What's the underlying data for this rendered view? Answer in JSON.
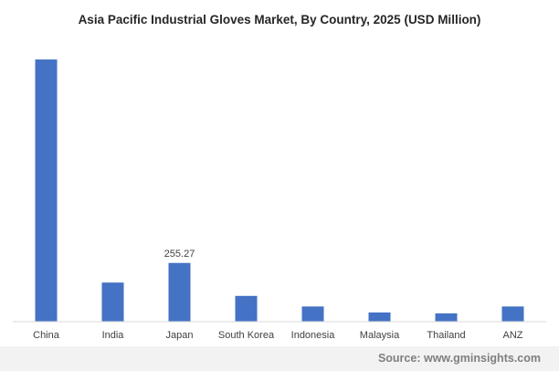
{
  "chart_data": {
    "type": "bar",
    "title": "Asia Pacific Industrial Gloves Market, By Country, 2025 (USD Million)",
    "categories": [
      "China",
      "India",
      "Japan",
      "South Korea",
      "Indonesia",
      "Malaysia",
      "Thailand",
      "ANZ"
    ],
    "values": [
      1140,
      170,
      255.27,
      112,
      66,
      40,
      36,
      66
    ],
    "data_labels": [
      null,
      null,
      "255.27",
      null,
      null,
      null,
      null,
      null
    ],
    "xlabel": "",
    "ylabel": "",
    "ylim": [
      0,
      1200
    ],
    "grid": false,
    "legend": "none",
    "bar_color": "#4472c4",
    "axis_color": "#d9d9d9"
  },
  "footer": {
    "source": "Source: www.gminsights.com"
  }
}
